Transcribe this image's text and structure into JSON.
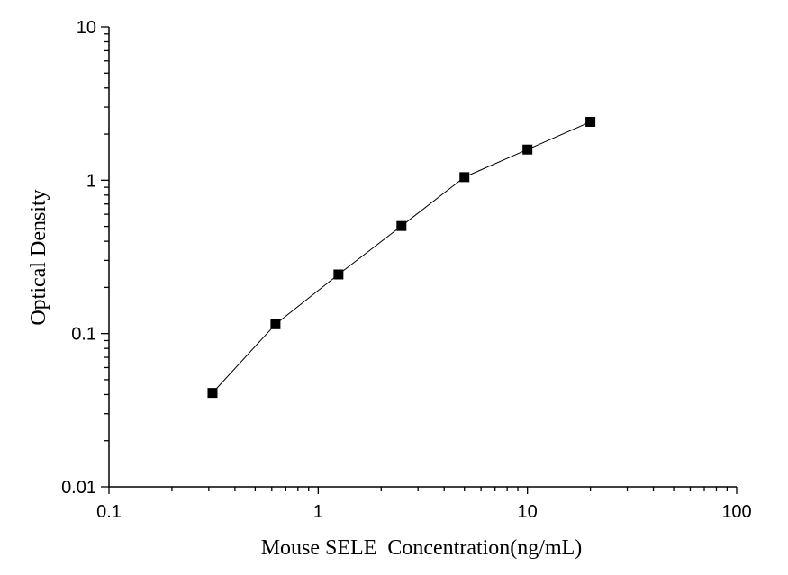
{
  "chart_data": {
    "type": "scatter",
    "xlabel": "Mouse SELE  Concentration(ng/mL)",
    "ylabel": "Optical Density",
    "x_scale": "log",
    "y_scale": "log",
    "xlim": [
      0.1,
      100
    ],
    "ylim": [
      0.01,
      10
    ],
    "x_ticks": [
      "0.1",
      "1",
      "10",
      "100"
    ],
    "y_ticks": [
      "0.01",
      "0.1",
      "1",
      "10"
    ],
    "grid": false,
    "series": [
      {
        "x": [
          0.3125,
          0.625,
          1.25,
          2.5,
          5,
          10,
          20
        ],
        "y": [
          0.041,
          0.115,
          0.243,
          0.503,
          1.048,
          1.586,
          2.403
        ],
        "marker": "square",
        "color": "#000000",
        "connected": true
      }
    ]
  }
}
